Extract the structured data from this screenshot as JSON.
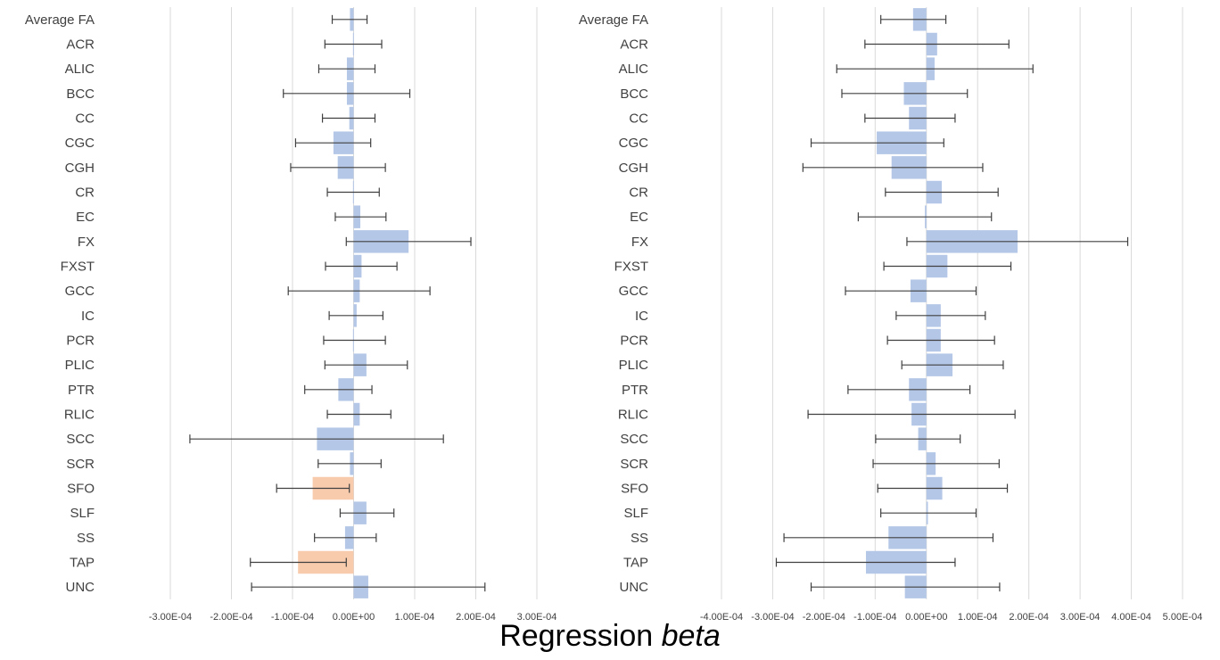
{
  "xlabel": {
    "text": "Regression ",
    "emphasis": "beta"
  },
  "colors": {
    "bar": "#b4c7e7",
    "highlight": "#f8cbad",
    "grid": "#d9d9d9",
    "errorbar": "#404040"
  },
  "chart_data": [
    {
      "type": "bar",
      "orientation": "horizontal",
      "categories": [
        "Average FA",
        "ACR",
        "ALIC",
        "BCC",
        "CC",
        "CGC",
        "CGH",
        "CR",
        "EC",
        "FX",
        "FXST",
        "GCC",
        "IC",
        "PCR",
        "PLIC",
        "PTR",
        "RLIC",
        "SCC",
        "SCR",
        "SFO",
        "SLF",
        "SS",
        "TAP",
        "UNC"
      ],
      "values": [
        -6e-06,
        -1e-06,
        -1.1e-05,
        -1.1e-05,
        -7e-06,
        -3.3e-05,
        -2.6e-05,
        -1e-06,
        1.1e-05,
        9e-05,
        1.3e-05,
        1e-05,
        5e-06,
        -1e-06,
        2.1e-05,
        -2.5e-05,
        1e-05,
        -6e-05,
        -6e-06,
        -6.7e-05,
        2.1e-05,
        -1.4e-05,
        -9.1e-05,
        2.4e-05
      ],
      "error_low": [
        -3.5e-05,
        -4.7e-05,
        -5.7e-05,
        -0.000115,
        -5.1e-05,
        -9.5e-05,
        -0.000103,
        -4.3e-05,
        -3e-05,
        -1.2e-05,
        -4.6e-05,
        -0.000107,
        -4e-05,
        -4.9e-05,
        -4.7e-05,
        -8e-05,
        -4.3e-05,
        -0.000268,
        -5.8e-05,
        -0.000126,
        -2.2e-05,
        -6.4e-05,
        -0.000169,
        -0.000167
      ],
      "error_high": [
        2.2e-05,
        4.6e-05,
        3.5e-05,
        9.2e-05,
        3.5e-05,
        2.8e-05,
        5.2e-05,
        4.2e-05,
        5.3e-05,
        0.000192,
        7.1e-05,
        0.000125,
        4.8e-05,
        5.2e-05,
        8.8e-05,
        3e-05,
        6.1e-05,
        0.000147,
        4.5e-05,
        -7e-06,
        6.6e-05,
        3.7e-05,
        -1.2e-05,
        0.000215
      ],
      "highlighted": [
        "SFO",
        "TAP"
      ],
      "xlim": [
        -0.0003,
        0.0003
      ],
      "xticks": [
        "-3.00E-04",
        "-2.00E-04",
        "-1.00E-04",
        "0.00E+00",
        "1.00E-04",
        "2.00E-04",
        "3.00E-04"
      ],
      "xtick_values": [
        -0.0003,
        -0.0002,
        -0.0001,
        0,
        0.0001,
        0.0002,
        0.0003
      ],
      "grid": true
    },
    {
      "type": "bar",
      "orientation": "horizontal",
      "categories": [
        "Average FA",
        "ACR",
        "ALIC",
        "BCC",
        "CC",
        "CGC",
        "CGH",
        "CR",
        "EC",
        "FX",
        "FXST",
        "GCC",
        "IC",
        "PCR",
        "PLIC",
        "PTR",
        "RLIC",
        "SCC",
        "SCR",
        "SFO",
        "SLF",
        "SS",
        "TAP",
        "UNC"
      ],
      "values": [
        -2.6e-05,
        2.1e-05,
        1.6e-05,
        -4.4e-05,
        -3.4e-05,
        -9.7e-05,
        -6.8e-05,
        3e-05,
        -3e-06,
        0.000178,
        4.1e-05,
        -3.1e-05,
        2.8e-05,
        2.8e-05,
        5.1e-05,
        -3.4e-05,
        -2.9e-05,
        -1.6e-05,
        1.8e-05,
        3.1e-05,
        3e-06,
        -7.4e-05,
        -0.000118,
        -4.2e-05
      ],
      "error_low": [
        -8.9e-05,
        -0.00012,
        -0.000175,
        -0.000165,
        -0.00012,
        -0.000225,
        -0.000241,
        -8e-05,
        -0.000133,
        -3.8e-05,
        -8.3e-05,
        -0.000158,
        -5.9e-05,
        -7.6e-05,
        -4.8e-05,
        -0.000153,
        -0.000231,
        -9.9e-05,
        -0.000104,
        -9.5e-05,
        -8.9e-05,
        -0.000278,
        -0.000293,
        -0.000225
      ],
      "error_high": [
        3.8e-05,
        0.000161,
        0.000208,
        8e-05,
        5.6e-05,
        3.4e-05,
        0.00011,
        0.00014,
        0.000127,
        0.000393,
        0.000165,
        9.7e-05,
        0.000115,
        0.000133,
        0.00015,
        8.5e-05,
        0.000173,
        6.6e-05,
        0.000142,
        0.000158,
        9.7e-05,
        0.00013,
        5.6e-05,
        0.000143
      ],
      "highlighted": [],
      "xlim": [
        -0.0004,
        0.0005
      ],
      "xticks": [
        "-4.00E-04",
        "-3.00E-04",
        "-2.00E-04",
        "-1.00E-04",
        "0.00E+00",
        "1.00E-04",
        "2.00E-04",
        "3.00E-04",
        "4.00E-04",
        "5.00E-04"
      ],
      "xtick_values": [
        -0.0004,
        -0.0003,
        -0.0002,
        -0.0001,
        0,
        0.0001,
        0.0002,
        0.0003,
        0.0004,
        0.0005
      ],
      "grid": true
    }
  ]
}
